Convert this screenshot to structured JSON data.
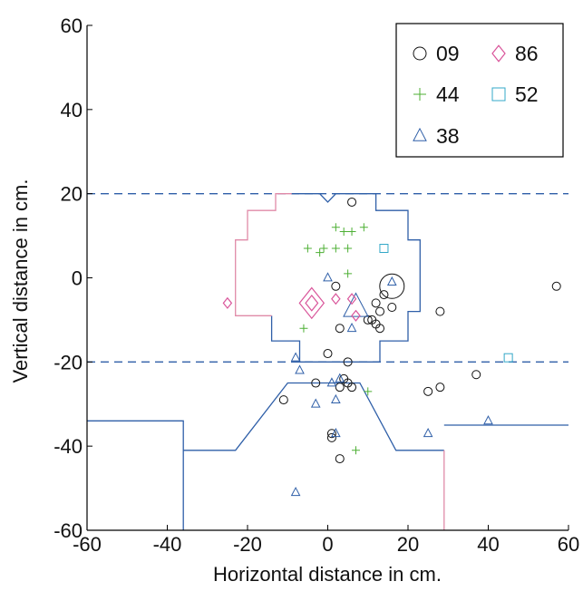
{
  "chart_data": {
    "type": "scatter",
    "title": "",
    "xlabel": "Horizontal distance in cm.",
    "ylabel": "Vertical distance in cm.",
    "xlim": [
      -60,
      60
    ],
    "ylim": [
      -60,
      60
    ],
    "xticks": [
      -60,
      -40,
      -20,
      0,
      20,
      40,
      60
    ],
    "yticks": [
      -60,
      -40,
      -20,
      0,
      20,
      40,
      60
    ],
    "grid": false,
    "legend_position": "top-right",
    "reference_lines": [
      {
        "style": "dashed",
        "color": "#2f5fa8",
        "y": 20
      },
      {
        "style": "dashed",
        "color": "#2f5fa8",
        "y": -20
      }
    ],
    "outlines": [
      {
        "color": "#2f5fa8",
        "points": [
          [
            -9,
            20
          ],
          [
            -2,
            20
          ],
          [
            0,
            18
          ],
          [
            2,
            20
          ],
          [
            12,
            20
          ],
          [
            12,
            16
          ],
          [
            20,
            16
          ],
          [
            20,
            9
          ],
          [
            23,
            9
          ],
          [
            23,
            -8
          ],
          [
            20,
            -8
          ],
          [
            20,
            -15
          ],
          [
            13,
            -15
          ],
          [
            13,
            -20
          ],
          [
            -7,
            -20
          ],
          [
            -7,
            -15
          ],
          [
            -14,
            -15
          ],
          [
            -14,
            -9
          ]
        ]
      },
      {
        "color": "#e08aa8",
        "points": [
          [
            -14,
            -9
          ],
          [
            -23,
            -9
          ],
          [
            -23,
            9
          ],
          [
            -20,
            9
          ],
          [
            -20,
            16
          ],
          [
            -13,
            16
          ],
          [
            -13,
            20
          ],
          [
            -9,
            20
          ]
        ]
      },
      {
        "color": "#2f5fa8",
        "points": [
          [
            -60,
            -34
          ],
          [
            -36,
            -34
          ],
          [
            -36,
            -60
          ]
        ]
      },
      {
        "color": "#2f5fa8",
        "points": [
          [
            -36,
            -41
          ],
          [
            -23,
            -41
          ],
          [
            -10,
            -25
          ],
          [
            8,
            -25
          ],
          [
            17,
            -41
          ],
          [
            29,
            -41
          ]
        ]
      },
      {
        "color": "#e08aa8",
        "points": [
          [
            29,
            -41
          ],
          [
            29,
            -60
          ]
        ]
      },
      {
        "color": "#2f5fa8",
        "points": [
          [
            29,
            -35
          ],
          [
            60,
            -35
          ]
        ]
      }
    ],
    "series": [
      {
        "name": "09",
        "marker": "circle",
        "color": "#111111",
        "points": [
          [
            6,
            18
          ],
          [
            2,
            -2
          ],
          [
            16,
            -2
          ],
          [
            14,
            -4
          ],
          [
            12,
            -6
          ],
          [
            13,
            -8
          ],
          [
            11,
            -10
          ],
          [
            10,
            -10
          ],
          [
            16,
            -7
          ],
          [
            12,
            -11
          ],
          [
            13,
            -12
          ],
          [
            3,
            -12
          ],
          [
            28,
            -8
          ],
          [
            0,
            -18
          ],
          [
            5,
            -20
          ],
          [
            4,
            -24
          ],
          [
            5,
            -25
          ],
          [
            6,
            -26
          ],
          [
            -3,
            -25
          ],
          [
            3,
            -26
          ],
          [
            -11,
            -29
          ],
          [
            25,
            -27
          ],
          [
            28,
            -26
          ],
          [
            37,
            -23
          ],
          [
            57,
            -2
          ],
          [
            1,
            -37
          ],
          [
            1,
            -38
          ],
          [
            3,
            -43
          ]
        ],
        "sizes": [
          1,
          1,
          3,
          1,
          1,
          1,
          1,
          1,
          1,
          1,
          1,
          1,
          1,
          1,
          1,
          1,
          1,
          1,
          1,
          1,
          1,
          1,
          1,
          1,
          1,
          1,
          1,
          1
        ]
      },
      {
        "name": "44",
        "marker": "plus",
        "color": "#4caf33",
        "points": [
          [
            2,
            12
          ],
          [
            4,
            11
          ],
          [
            6,
            11
          ],
          [
            9,
            12
          ],
          [
            -1,
            7
          ],
          [
            2,
            7
          ],
          [
            5,
            7
          ],
          [
            -2,
            6
          ],
          [
            -5,
            7
          ],
          [
            5,
            1
          ],
          [
            -6,
            -12
          ],
          [
            10,
            -27
          ],
          [
            7,
            -41
          ]
        ]
      },
      {
        "name": "38",
        "marker": "triangle",
        "color": "#2f5fa8",
        "points": [
          [
            0,
            0
          ],
          [
            16,
            -1
          ],
          [
            7,
            -7
          ],
          [
            6,
            -12
          ],
          [
            -8,
            -19
          ],
          [
            -7,
            -22
          ],
          [
            1,
            -25
          ],
          [
            3,
            -24
          ],
          [
            -3,
            -30
          ],
          [
            2,
            -29
          ],
          [
            25,
            -37
          ],
          [
            40,
            -34
          ],
          [
            2,
            -37
          ],
          [
            -8,
            -51
          ]
        ],
        "sizes": [
          1,
          1,
          3,
          1,
          1,
          1,
          1,
          1,
          1,
          1,
          1,
          1,
          1,
          1
        ]
      },
      {
        "name": "86",
        "marker": "diamond",
        "color": "#d9549a",
        "points": [
          [
            -4,
            -6
          ],
          [
            -4,
            -6
          ],
          [
            -25,
            -6
          ],
          [
            2,
            -5
          ],
          [
            6,
            -5
          ],
          [
            7,
            -9
          ]
        ],
        "sizes": [
          3,
          1.5,
          1,
          1,
          1,
          1
        ]
      },
      {
        "name": "52",
        "marker": "square",
        "color": "#33a8c8",
        "points": [
          [
            14,
            7
          ],
          [
            45,
            -19
          ]
        ]
      }
    ]
  },
  "legend": {
    "entries": [
      {
        "label": "09",
        "marker": "circle",
        "color": "#111111"
      },
      {
        "label": "86",
        "marker": "diamond",
        "color": "#d9549a"
      },
      {
        "label": "44",
        "marker": "plus",
        "color": "#4caf33"
      },
      {
        "label": "52",
        "marker": "square",
        "color": "#33a8c8"
      },
      {
        "label": "38",
        "marker": "triangle",
        "color": "#2f5fa8"
      }
    ]
  }
}
